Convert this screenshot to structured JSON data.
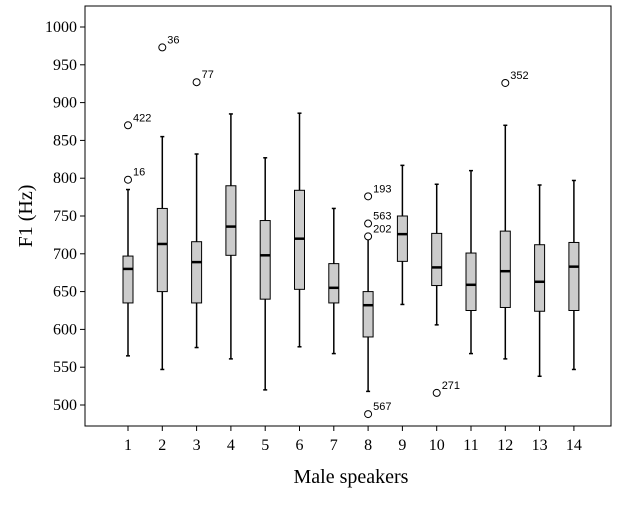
{
  "chart_data": {
    "type": "boxplot",
    "title": "",
    "xlabel": "Male speakers",
    "ylabel": "F1 (Hz)",
    "ylim": [
      460,
      1030
    ],
    "yticks": [
      500,
      550,
      600,
      650,
      700,
      750,
      800,
      850,
      900,
      950,
      1000
    ],
    "categories": [
      "1",
      "2",
      "3",
      "4",
      "5",
      "6",
      "7",
      "8",
      "9",
      "10",
      "11",
      "12",
      "13",
      "14"
    ],
    "grid": false,
    "box_color": "#cccccc",
    "boxes": [
      {
        "category": "1",
        "whisker_low": 565,
        "q1": 635,
        "median": 680,
        "q3": 697,
        "whisker_high": 785,
        "outliers": [
          {
            "value": 870,
            "label": "422"
          },
          {
            "value": 798,
            "label": "16"
          }
        ]
      },
      {
        "category": "2",
        "whisker_low": 547,
        "q1": 650,
        "median": 713,
        "q3": 760,
        "whisker_high": 855,
        "outliers": [
          {
            "value": 973,
            "label": "36"
          }
        ]
      },
      {
        "category": "3",
        "whisker_low": 576,
        "q1": 635,
        "median": 689,
        "q3": 716,
        "whisker_high": 832,
        "outliers": [
          {
            "value": 927,
            "label": "77"
          }
        ]
      },
      {
        "category": "4",
        "whisker_low": 561,
        "q1": 698,
        "median": 736,
        "q3": 790,
        "whisker_high": 885,
        "outliers": []
      },
      {
        "category": "5",
        "whisker_low": 520,
        "q1": 640,
        "median": 698,
        "q3": 744,
        "whisker_high": 827,
        "outliers": []
      },
      {
        "category": "6",
        "whisker_low": 577,
        "q1": 653,
        "median": 720,
        "q3": 784,
        "whisker_high": 886,
        "outliers": []
      },
      {
        "category": "7",
        "whisker_low": 568,
        "q1": 635,
        "median": 655,
        "q3": 687,
        "whisker_high": 760,
        "outliers": []
      },
      {
        "category": "8",
        "whisker_low": 518,
        "q1": 590,
        "median": 632,
        "q3": 650,
        "whisker_high": 722,
        "outliers": [
          {
            "value": 776,
            "label": "193"
          },
          {
            "value": 740,
            "label": "563"
          },
          {
            "value": 723,
            "label": "202"
          },
          {
            "value": 488,
            "label": "567"
          }
        ]
      },
      {
        "category": "9",
        "whisker_low": 633,
        "q1": 690,
        "median": 726,
        "q3": 750,
        "whisker_high": 817,
        "outliers": []
      },
      {
        "category": "10",
        "whisker_low": 606,
        "q1": 658,
        "median": 682,
        "q3": 727,
        "whisker_high": 792,
        "outliers": [
          {
            "value": 516,
            "label": "271"
          }
        ]
      },
      {
        "category": "11",
        "whisker_low": 568,
        "q1": 625,
        "median": 659,
        "q3": 701,
        "whisker_high": 810,
        "outliers": []
      },
      {
        "category": "12",
        "whisker_low": 561,
        "q1": 629,
        "median": 677,
        "q3": 730,
        "whisker_high": 870,
        "outliers": [
          {
            "value": 926,
            "label": "352"
          }
        ]
      },
      {
        "category": "13",
        "whisker_low": 538,
        "q1": 624,
        "median": 663,
        "q3": 712,
        "whisker_high": 791,
        "outliers": []
      },
      {
        "category": "14",
        "whisker_low": 547,
        "q1": 625,
        "median": 683,
        "q3": 715,
        "whisker_high": 797,
        "outliers": []
      }
    ]
  }
}
